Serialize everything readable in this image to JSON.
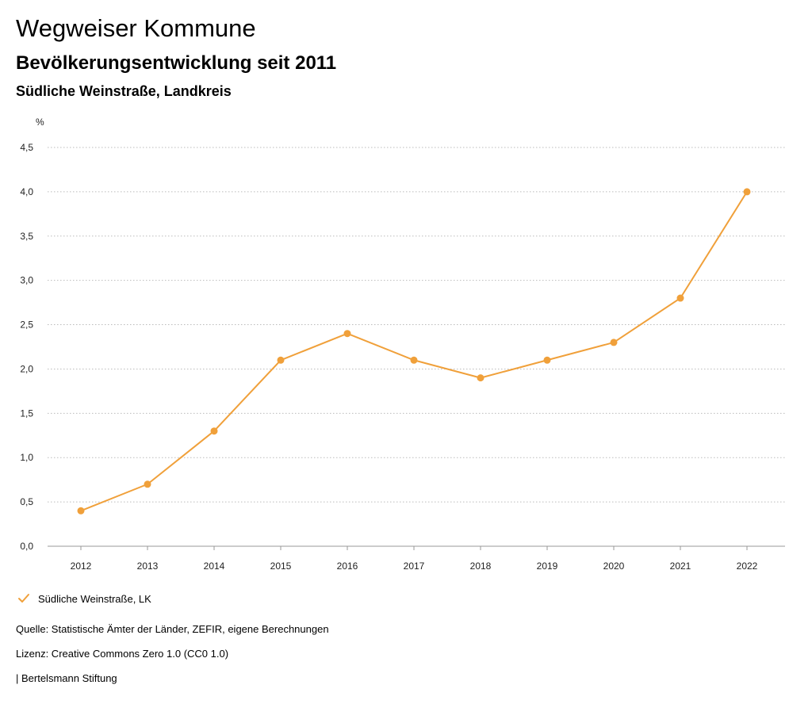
{
  "header": {
    "title": "Wegweiser Kommune",
    "subtitle": "Bevölkerungsentwicklung seit 2011",
    "region": "Südliche Weinstraße, Landkreis"
  },
  "legend": {
    "label": "Südliche Weinstraße, LK",
    "icon": "check-icon"
  },
  "footer": {
    "source": "Quelle: Statistische Ämter der Länder, ZEFIR, eigene Berechnungen",
    "license": "Lizenz: Creative Commons Zero 1.0 (CC0 1.0)",
    "publisher": "| Bertelsmann Stiftung"
  },
  "colors": {
    "series": "#F0A03A",
    "grid": "#BBBBBB",
    "axis": "#999999"
  },
  "chart_data": {
    "type": "line",
    "ylabel": "%",
    "xlabel": "",
    "ylim": [
      0,
      4.5
    ],
    "yticks": [
      "0,0",
      "0,5",
      "1,0",
      "1,5",
      "2,0",
      "2,5",
      "3,0",
      "3,5",
      "4,0",
      "4,5"
    ],
    "ytick_values": [
      0,
      0.5,
      1.0,
      1.5,
      2.0,
      2.5,
      3.0,
      3.5,
      4.0,
      4.5
    ],
    "categories": [
      "2012",
      "2013",
      "2014",
      "2015",
      "2016",
      "2017",
      "2018",
      "2019",
      "2020",
      "2021",
      "2022"
    ],
    "series": [
      {
        "name": "Südliche Weinstraße, LK",
        "values": [
          0.4,
          0.7,
          1.3,
          2.1,
          2.4,
          2.1,
          1.9,
          2.1,
          2.3,
          2.8,
          4.0
        ]
      }
    ],
    "grid": true,
    "legend_position": "bottom-left"
  }
}
